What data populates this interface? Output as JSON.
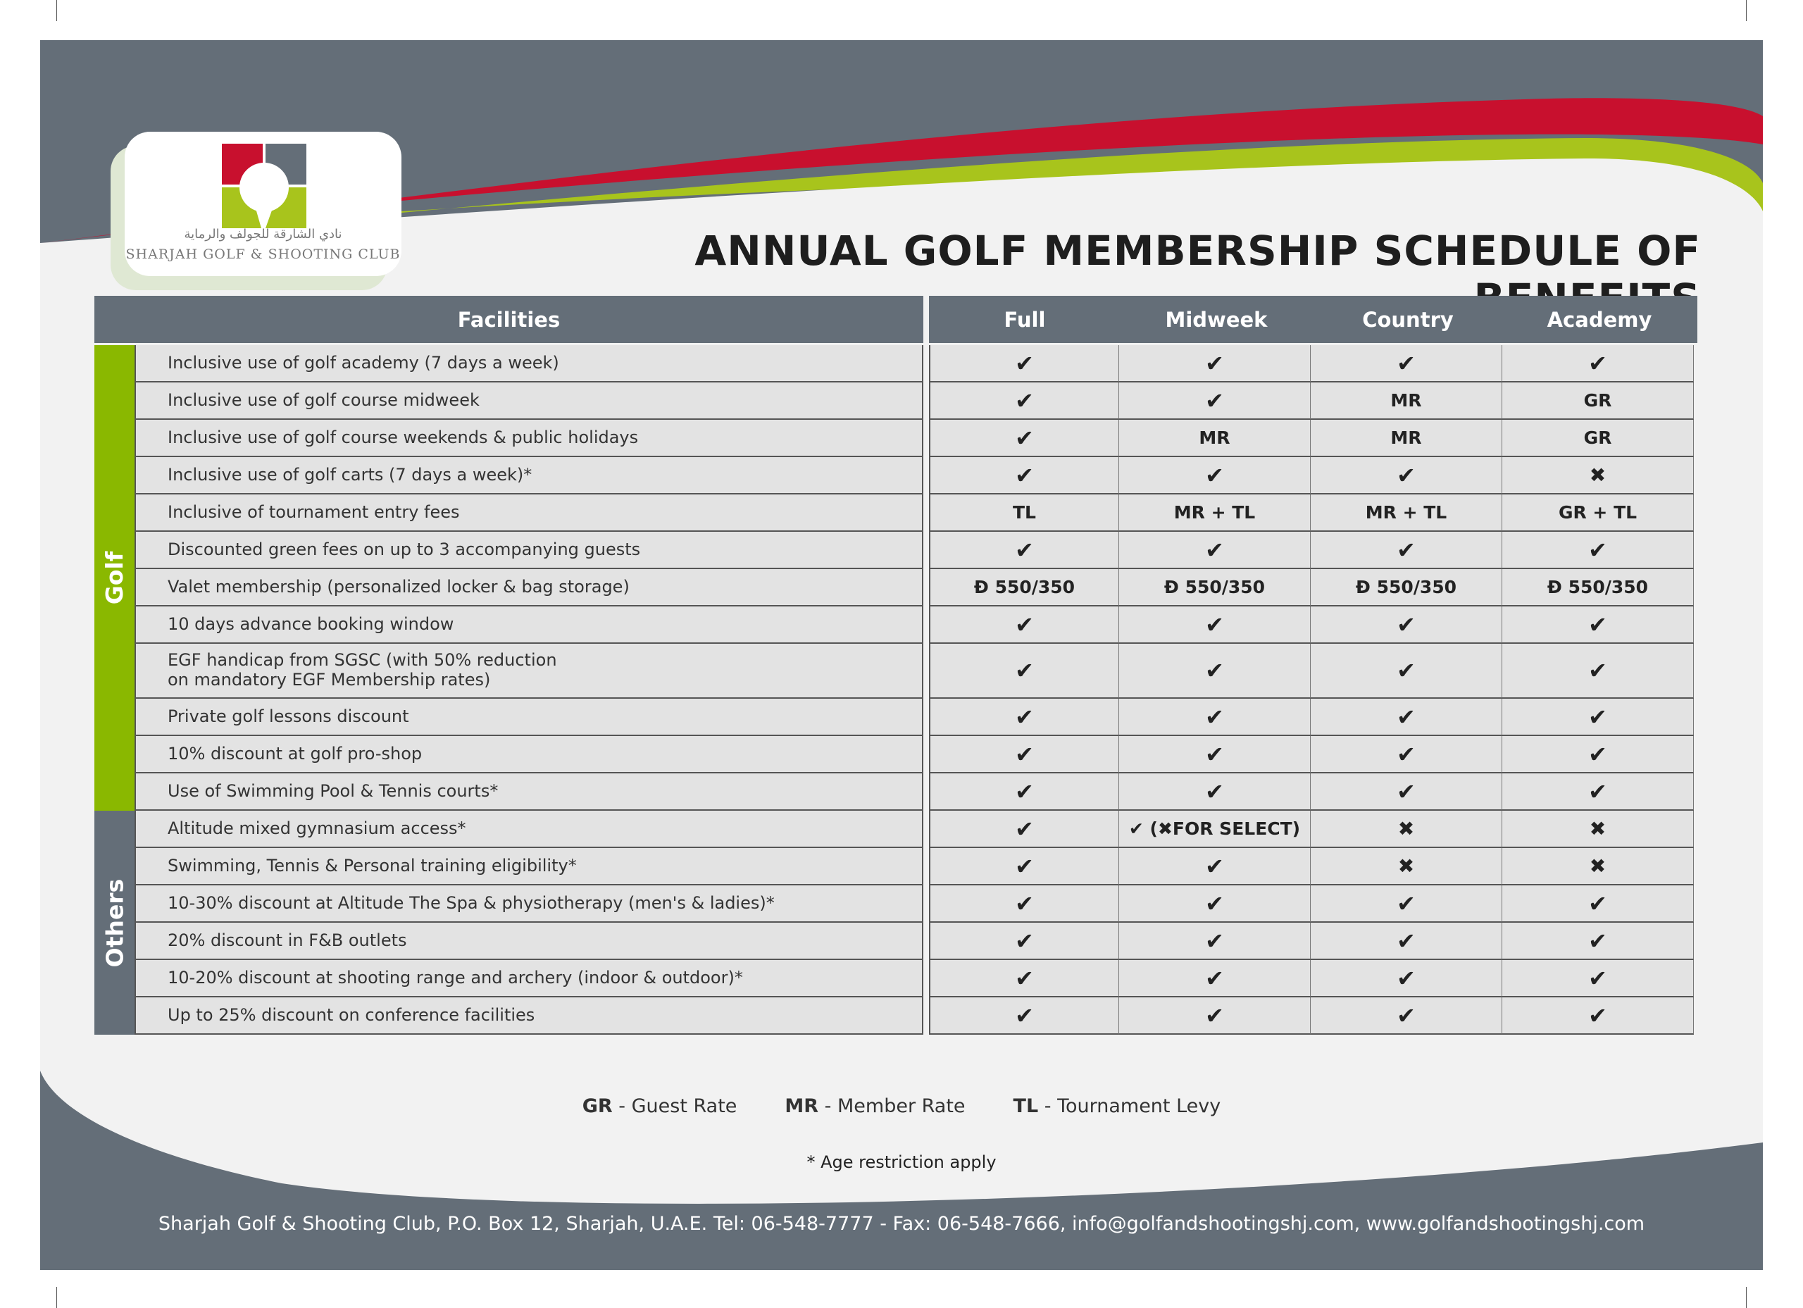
{
  "colors": {
    "slate": "#646e78",
    "red": "#c8102e",
    "green": "#8ab800",
    "cell": "#e3e3e3"
  },
  "logo": {
    "arabic": "نادي الشارقة للجولف والرماية",
    "english": "SHARJAH GOLF & SHOOTING CLUB"
  },
  "title": "ANNUAL GOLF MEMBERSHIP SCHEDULE OF BENEFITS",
  "headers": {
    "facilities": "Facilities",
    "columns": [
      "Full",
      "Midweek",
      "Country",
      "Academy"
    ]
  },
  "groups": [
    {
      "label": "Golf",
      "rows": 12
    },
    {
      "label": "Others",
      "rows": 6
    }
  ],
  "rows": [
    {
      "facility": "Inclusive use of golf academy (7 days a week)",
      "values": [
        "check",
        "check",
        "check",
        "check"
      ]
    },
    {
      "facility": "Inclusive use of golf course midweek",
      "values": [
        "check",
        "check",
        "MR",
        "GR"
      ]
    },
    {
      "facility": "Inclusive use of golf course weekends & public holidays",
      "values": [
        "check",
        "MR",
        "MR",
        "GR"
      ]
    },
    {
      "facility": "Inclusive use of golf carts (7 days a week)*",
      "values": [
        "check",
        "check",
        "check",
        "cross"
      ]
    },
    {
      "facility": "Inclusive of tournament entry fees",
      "values": [
        "TL",
        "MR + TL",
        "MR + TL",
        "GR + TL"
      ]
    },
    {
      "facility": "Discounted green fees on up to 3 accompanying guests",
      "values": [
        "check",
        "check",
        "check",
        "check"
      ]
    },
    {
      "facility": "Valet membership (personalized locker & bag storage)",
      "values": [
        "Đ 550/350",
        "Đ 550/350",
        "Đ 550/350",
        "Đ 550/350"
      ]
    },
    {
      "facility": "10 days advance booking window",
      "values": [
        "check",
        "check",
        "check",
        "check"
      ]
    },
    {
      "facility": "EGF handicap from SGSC (with 50% reduction\non mandatory EGF Membership rates)",
      "values": [
        "check",
        "check",
        "check",
        "check"
      ],
      "tall": true
    },
    {
      "facility": "Private golf lessons discount",
      "values": [
        "check",
        "check",
        "check",
        "check"
      ]
    },
    {
      "facility": "10% discount at golf pro-shop",
      "values": [
        "check",
        "check",
        "check",
        "check"
      ]
    },
    {
      "facility": "Use of Swimming Pool & Tennis courts*",
      "values": [
        "check",
        "check",
        "check",
        "check"
      ]
    },
    {
      "facility": "Altitude mixed gymnasium access*",
      "values": [
        "check",
        "✔ (✖FOR SELECT)",
        "cross",
        "cross"
      ]
    },
    {
      "facility": "Swimming, Tennis & Personal training eligibility*",
      "values": [
        "check",
        "check",
        "cross",
        "cross"
      ]
    },
    {
      "facility": "10-30% discount at Altitude The Spa & physiotherapy (men's & ladies)*",
      "values": [
        "check",
        "check",
        "check",
        "check"
      ]
    },
    {
      "facility": "20% discount in F&B outlets",
      "values": [
        "check",
        "check",
        "check",
        "check"
      ]
    },
    {
      "facility": "10-20% discount at shooting range and archery (indoor & outdoor)*",
      "values": [
        "check",
        "check",
        "check",
        "check"
      ]
    },
    {
      "facility": "Up to 25% discount on conference facilities",
      "values": [
        "check",
        "check",
        "check",
        "check"
      ]
    }
  ],
  "legend": [
    {
      "abbr": "GR",
      "text": " - Guest Rate"
    },
    {
      "abbr": "MR",
      "text": " - Member Rate"
    },
    {
      "abbr": "TL",
      "text": " - Tournament Levy"
    }
  ],
  "note": "* Age restriction apply",
  "footer": "Sharjah Golf & Shooting Club, P.O. Box 12, Sharjah, U.A.E. Tel: 06-548-7777 - Fax: 06-548-7666, info@golfandshootingshj.com, www.golfandshootingshj.com"
}
